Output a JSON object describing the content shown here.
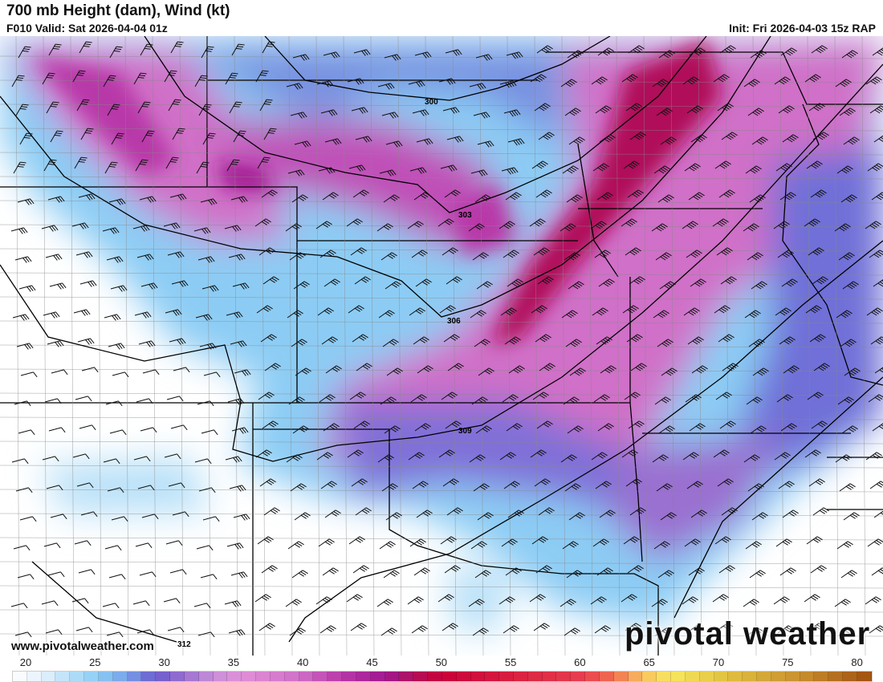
{
  "header": {
    "title": "700 mb Height (dam), Wind (kt)",
    "valid": "F010 Valid: Sat 2026-04-04 01z",
    "init": "Init: Fri 2026-04-03 15z RAP"
  },
  "contours": [
    {
      "label": "300"
    },
    {
      "label": "303"
    },
    {
      "label": "306"
    },
    {
      "label": "309"
    },
    {
      "label": "312"
    }
  ],
  "watermark": {
    "site": "www.pivotalweather.com",
    "logo": "pivotal weather"
  },
  "colorbar": {
    "unit": "kt",
    "min": 20,
    "max": 80,
    "ticks": [
      "20",
      "25",
      "30",
      "35",
      "40",
      "45",
      "50",
      "55",
      "60",
      "65",
      "70",
      "75",
      "80"
    ],
    "stops": [
      [
        20,
        "#ffffff"
      ],
      [
        22,
        "#e6f2fc"
      ],
      [
        24,
        "#b8e0f8"
      ],
      [
        26,
        "#8cccf4"
      ],
      [
        28,
        "#78a0e8"
      ],
      [
        30,
        "#6a5ccc"
      ],
      [
        32,
        "#9a70d0"
      ],
      [
        34,
        "#c890d8"
      ],
      [
        36,
        "#e090d8"
      ],
      [
        40,
        "#d070c8"
      ],
      [
        43,
        "#b838a8"
      ],
      [
        46,
        "#a01890"
      ],
      [
        48,
        "#b0105a"
      ],
      [
        50,
        "#c8003a"
      ],
      [
        55,
        "#d82040"
      ],
      [
        60,
        "#e84050"
      ],
      [
        62,
        "#f07050"
      ],
      [
        64,
        "#f8c060"
      ],
      [
        66,
        "#f8e860"
      ],
      [
        70,
        "#e0c040"
      ],
      [
        75,
        "#c89030"
      ],
      [
        80,
        "#a05010"
      ]
    ]
  }
}
